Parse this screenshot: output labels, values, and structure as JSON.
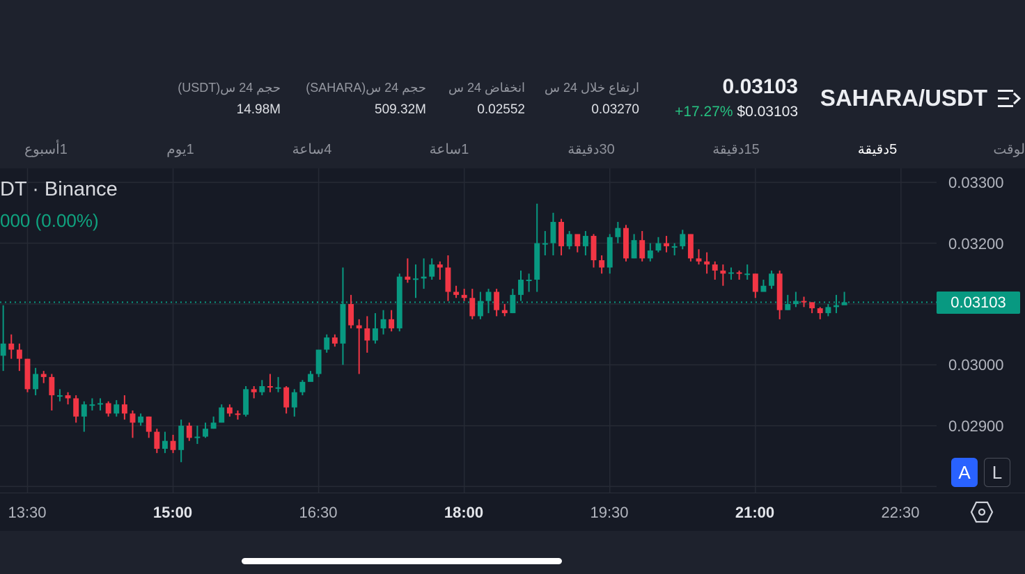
{
  "header": {
    "pair": "SAHARA/USDT",
    "last_price": "0.03103",
    "usd_price": "$0.03103",
    "change_pct": "+17.27%",
    "stats": [
      {
        "label": "ارتفاع خلال 24 س",
        "value": "0.03270"
      },
      {
        "label": "انخفاض 24 س",
        "value": "0.02552"
      },
      {
        "label": "حجم 24 س(SAHARA)",
        "value": "509.32M"
      },
      {
        "label": "حجم 24 س(USDT)",
        "value": "14.98M"
      }
    ]
  },
  "intervals": [
    {
      "label": "الوقت",
      "selected": false
    },
    {
      "label": "5دقيقة",
      "selected": true
    },
    {
      "label": "15دقيقة",
      "selected": false
    },
    {
      "label": "30دقيقة",
      "selected": false
    },
    {
      "label": "1ساعة",
      "selected": false
    },
    {
      "label": "4ساعة",
      "selected": false
    },
    {
      "label": "1يوم",
      "selected": false
    },
    {
      "label": "1أسبوع",
      "selected": false
    }
  ],
  "legend": {
    "symbol": "DT · Binance",
    "change": "000 (0.00%)"
  },
  "price_tag": "0.03103",
  "scale_buttons": {
    "auto": "A",
    "log": "L"
  },
  "colors": {
    "up": "#089981",
    "down": "#f23645",
    "accent": "#2962ff",
    "positive_text": "#26c281"
  },
  "chart_data": {
    "type": "candlestick",
    "interval_minutes": 5,
    "first_candle_time": "13:15",
    "xlim": [
      "13:13",
      "22:52"
    ],
    "ylim": [
      0.0279,
      0.03323
    ],
    "grid": true,
    "last_price_line": 0.03103,
    "y_ticks": [
      "0.03300",
      "0.03200",
      "0.03000",
      "0.02900"
    ],
    "y_tick_values": [
      0.033,
      0.032,
      0.03,
      0.029
    ],
    "x_ticks": [
      {
        "label": "13:30",
        "bold": false
      },
      {
        "label": "15:00",
        "bold": true
      },
      {
        "label": "16:30",
        "bold": false
      },
      {
        "label": "18:00",
        "bold": true
      },
      {
        "label": "19:30",
        "bold": false
      },
      {
        "label": "21:00",
        "bold": true
      },
      {
        "label": "22:30",
        "bold": false
      }
    ],
    "first_open": 0.03015,
    "close": [
      0.03035,
      0.03025,
      0.0301,
      0.0296,
      0.02985,
      0.0298,
      0.0295,
      0.0295,
      0.02945,
      0.02915,
      0.02935,
      0.02935,
      0.02937,
      0.0292,
      0.02935,
      0.0292,
      0.02905,
      0.02915,
      0.0289,
      0.02862,
      0.02875,
      0.0286,
      0.029,
      0.0288,
      0.02882,
      0.02895,
      0.02905,
      0.0293,
      0.0292,
      0.02918,
      0.0296,
      0.02955,
      0.02965,
      0.02963,
      0.02963,
      0.0293,
      0.02955,
      0.02972,
      0.02985,
      0.03025,
      0.03045,
      0.03035,
      0.031,
      0.03065,
      0.0306,
      0.0304,
      0.0306,
      0.03075,
      0.0306,
      0.03145,
      0.0314,
      0.03142,
      0.03145,
      0.03165,
      0.0316,
      0.0312,
      0.03115,
      0.0311,
      0.0308,
      0.03105,
      0.0312,
      0.0309,
      0.03085,
      0.03115,
      0.0314,
      0.0314,
      0.032,
      0.032,
      0.03235,
      0.03195,
      0.03215,
      0.03195,
      0.03212,
      0.03172,
      0.0316,
      0.0321,
      0.03225,
      0.03175,
      0.03205,
      0.03175,
      0.03188,
      0.032,
      0.03195,
      0.03195,
      0.03215,
      0.03175,
      0.0317,
      0.03165,
      0.03155,
      0.0315,
      0.03152,
      0.0315,
      0.0315,
      0.0312,
      0.0313,
      0.0315,
      0.0309,
      0.031,
      0.03105,
      0.03103,
      0.03093,
      0.03085,
      0.03095,
      0.03098,
      0.03103
    ],
    "high": [
      0.03098,
      0.0305,
      0.03035,
      0.0301,
      0.02995,
      0.0299,
      0.02985,
      0.0296,
      0.02955,
      0.0295,
      0.0294,
      0.02945,
      0.02945,
      0.0294,
      0.02942,
      0.0295,
      0.02925,
      0.0292,
      0.02915,
      0.02895,
      0.0289,
      0.02885,
      0.0291,
      0.02905,
      0.029,
      0.02905,
      0.02915,
      0.02935,
      0.02935,
      0.02925,
      0.02965,
      0.02965,
      0.02975,
      0.02985,
      0.0298,
      0.02965,
      0.0296,
      0.02975,
      0.0299,
      0.03025,
      0.0305,
      0.0305,
      0.0316,
      0.03115,
      0.03075,
      0.0308,
      0.03085,
      0.0309,
      0.0309,
      0.0315,
      0.03175,
      0.03165,
      0.03175,
      0.03175,
      0.0317,
      0.0318,
      0.0313,
      0.03125,
      0.03125,
      0.0312,
      0.03125,
      0.03125,
      0.031,
      0.03125,
      0.03155,
      0.0315,
      0.03265,
      0.0322,
      0.0325,
      0.0324,
      0.0322,
      0.0321,
      0.0322,
      0.03215,
      0.0318,
      0.03215,
      0.03235,
      0.0323,
      0.03215,
      0.0322,
      0.032,
      0.0321,
      0.03212,
      0.032,
      0.03222,
      0.03215,
      0.0319,
      0.03185,
      0.0317,
      0.03165,
      0.0316,
      0.03155,
      0.03165,
      0.0315,
      0.0314,
      0.03155,
      0.03155,
      0.03115,
      0.0312,
      0.03112,
      0.03103,
      0.03095,
      0.031,
      0.03115,
      0.0312
    ],
    "low": [
      0.0299,
      0.0301,
      0.0299,
      0.02955,
      0.0295,
      0.0297,
      0.02925,
      0.0294,
      0.02935,
      0.02905,
      0.0289,
      0.02925,
      0.02925,
      0.02915,
      0.02915,
      0.0291,
      0.0288,
      0.029,
      0.0288,
      0.02855,
      0.02855,
      0.02855,
      0.0284,
      0.02875,
      0.0287,
      0.0288,
      0.02895,
      0.02905,
      0.02915,
      0.0291,
      0.02915,
      0.02945,
      0.0295,
      0.02955,
      0.02955,
      0.0292,
      0.02915,
      0.0295,
      0.02975,
      0.0298,
      0.0302,
      0.0303,
      0.03,
      0.0306,
      0.02985,
      0.0302,
      0.03035,
      0.0305,
      0.03055,
      0.03055,
      0.03135,
      0.0311,
      0.03125,
      0.0314,
      0.0314,
      0.03105,
      0.0311,
      0.03105,
      0.03075,
      0.03075,
      0.03085,
      0.0308,
      0.0308,
      0.03085,
      0.03105,
      0.0312,
      0.0312,
      0.0318,
      0.0318,
      0.0318,
      0.0319,
      0.03185,
      0.0318,
      0.0316,
      0.0315,
      0.0315,
      0.032,
      0.0317,
      0.03175,
      0.0317,
      0.0317,
      0.03185,
      0.03185,
      0.0318,
      0.0319,
      0.0317,
      0.03165,
      0.0315,
      0.0314,
      0.0313,
      0.0314,
      0.0314,
      0.0314,
      0.0311,
      0.0312,
      0.03125,
      0.03075,
      0.0309,
      0.03095,
      0.03095,
      0.03085,
      0.03075,
      0.0308,
      0.03085,
      0.031
    ]
  }
}
